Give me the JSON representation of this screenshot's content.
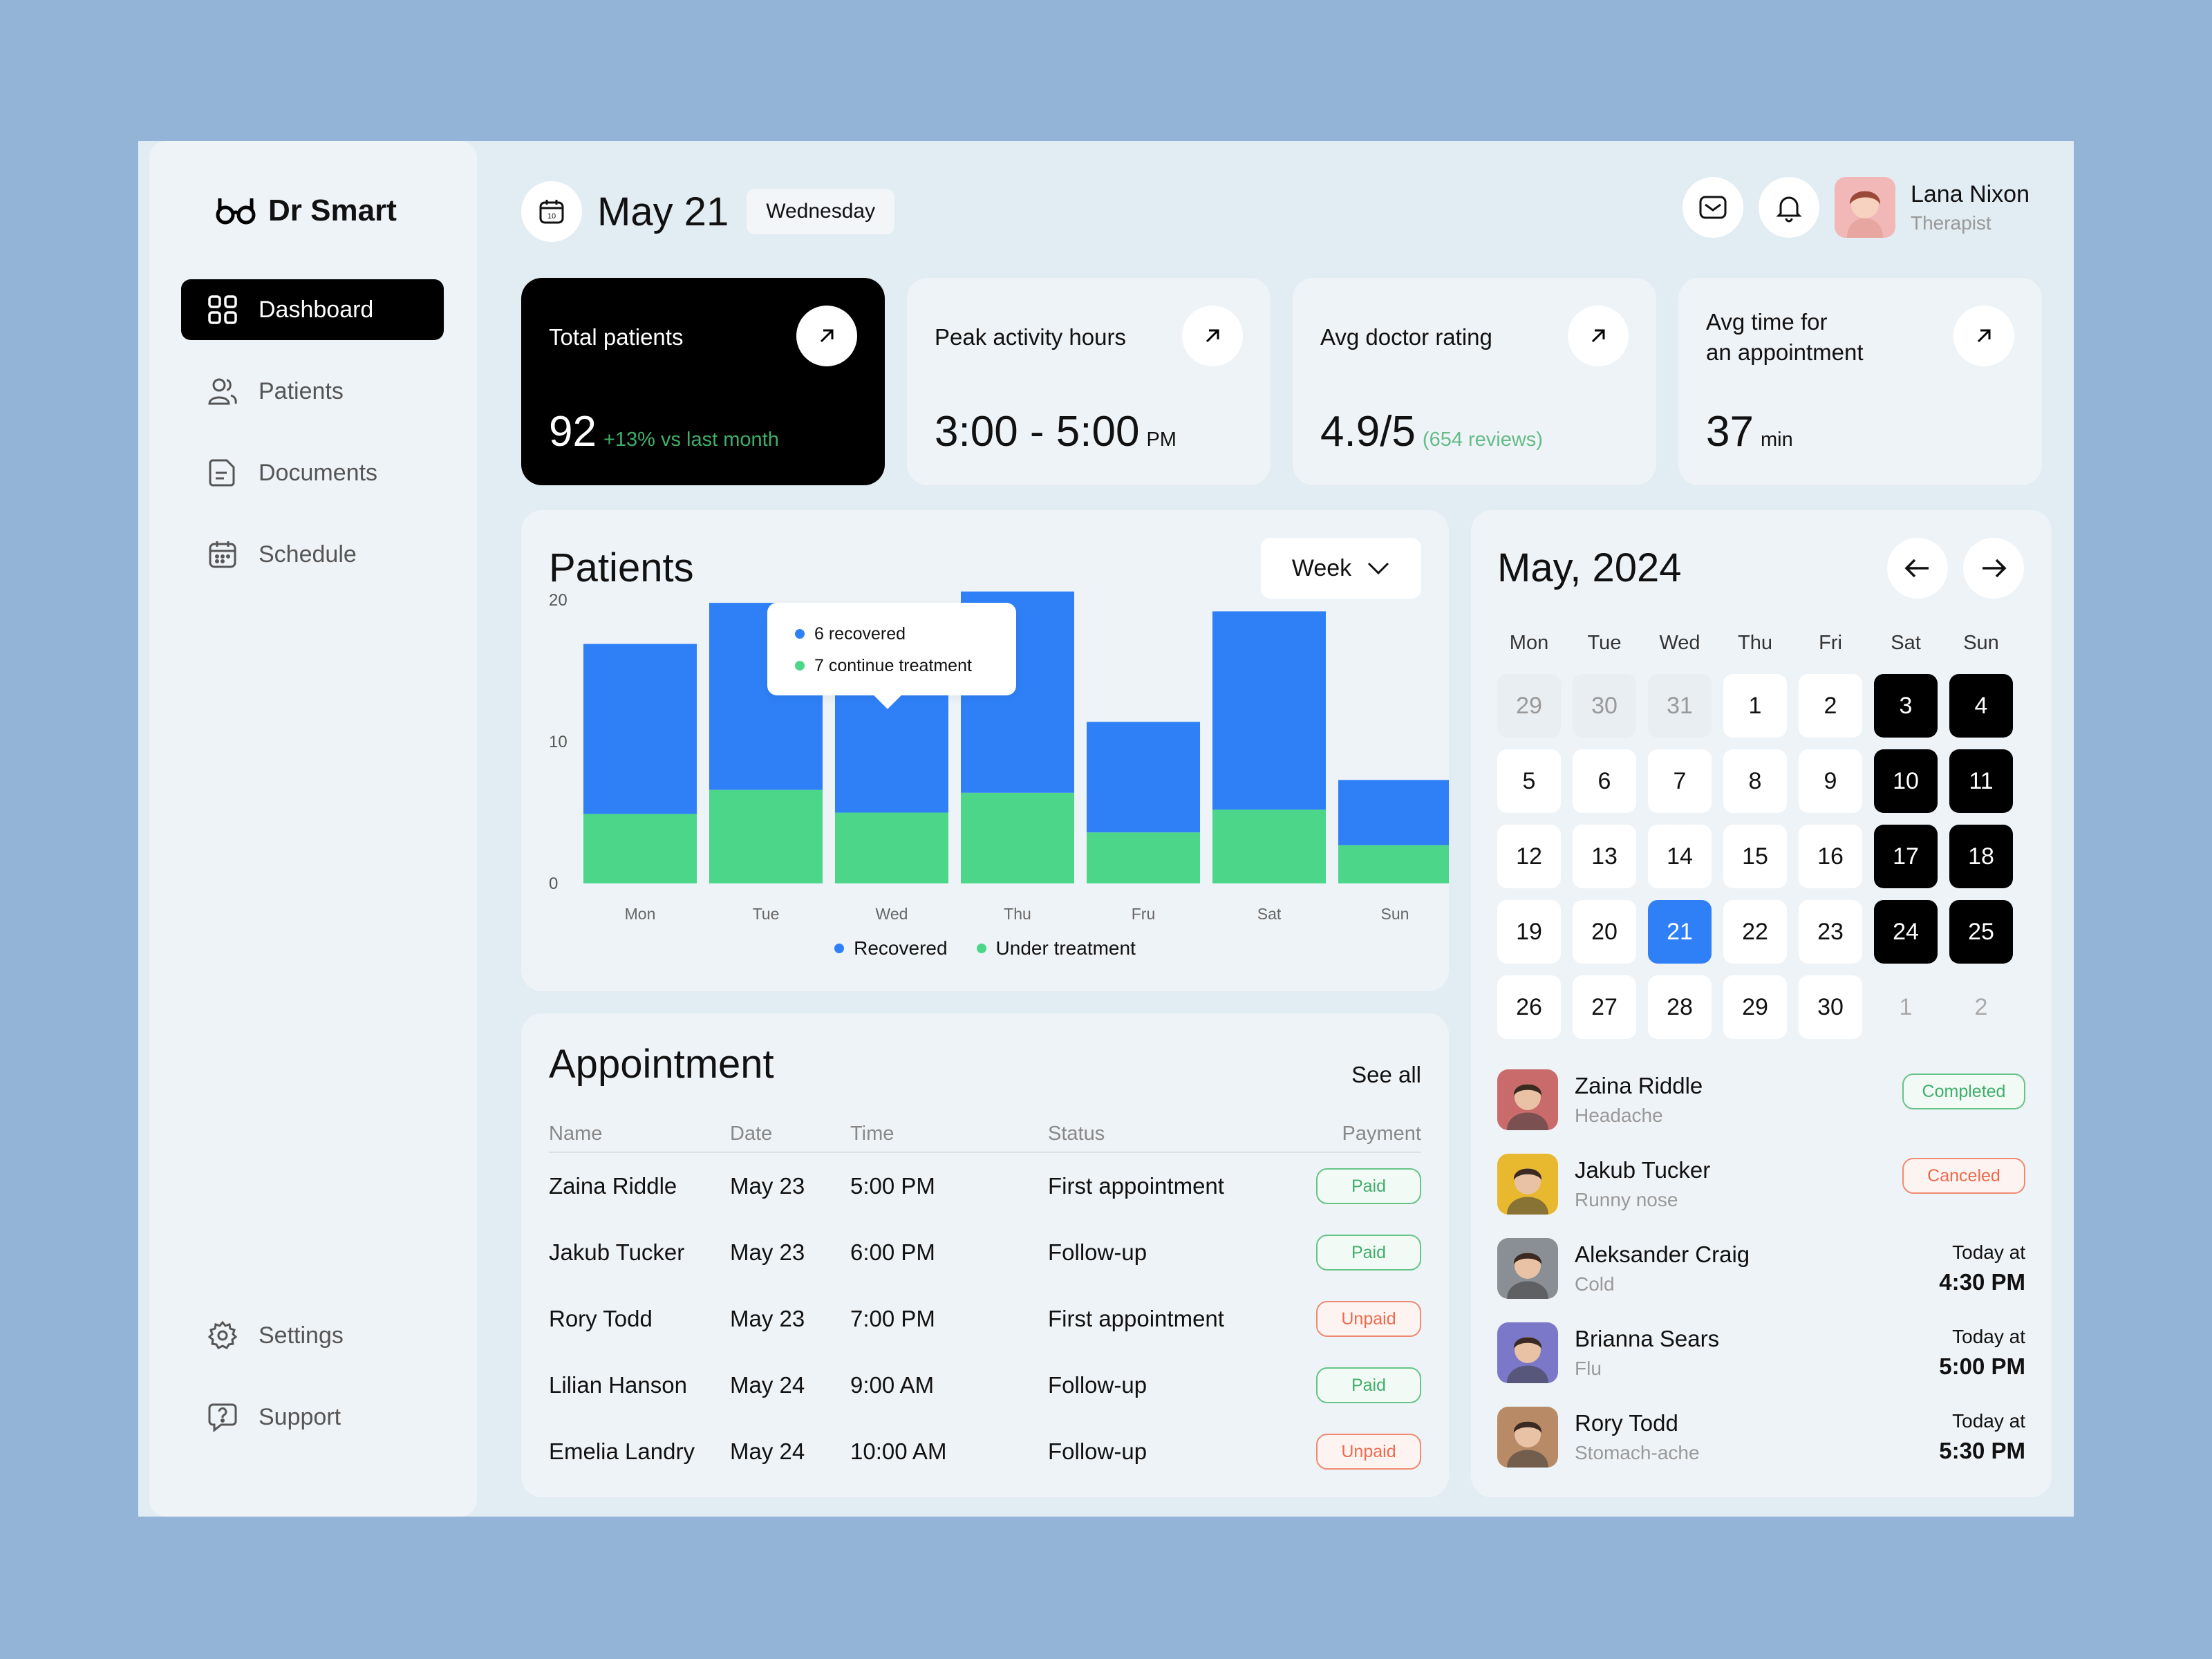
{
  "brand": {
    "name": "Dr Smart",
    "icon": "glasses-icon"
  },
  "sidebar": {
    "items": [
      {
        "label": "Dashboard",
        "icon": "grid-icon",
        "active": true
      },
      {
        "label": "Patients",
        "icon": "users-icon"
      },
      {
        "label": "Documents",
        "icon": "document-icon"
      },
      {
        "label": "Schedule",
        "icon": "calendar-icon"
      }
    ],
    "bottom": [
      {
        "label": "Settings",
        "icon": "gear-icon"
      },
      {
        "label": "Support",
        "icon": "chat-question-icon"
      }
    ]
  },
  "header": {
    "date": "May 21",
    "weekday": "Wednesday",
    "user": {
      "name": "Lana Nixon",
      "role": "Therapist"
    }
  },
  "stats": [
    {
      "title": "Total patients",
      "value": "92",
      "suffix": "+13% vs last month"
    },
    {
      "title": "Peak activity hours",
      "value": "3:00 - 5:00",
      "suffix": "PM"
    },
    {
      "title": "Avg doctor rating",
      "value": "4.9/5",
      "suffix": "(654 reviews)"
    },
    {
      "title_line1": "Avg time for",
      "title_line2": "an appointment",
      "value": "37",
      "suffix": "min"
    }
  ],
  "patients_panel": {
    "title": "Patients",
    "range_label": "Week",
    "tooltip": {
      "recovered": "6 recovered",
      "treatment": "7 continue treatment"
    }
  },
  "chart_data": {
    "type": "bar",
    "stacked": true,
    "categories": [
      "Mon",
      "Tue",
      "Wed",
      "Thu",
      "Fru",
      "Sat",
      "Sun"
    ],
    "series": [
      {
        "name": "Under treatment",
        "color": "#4cd68a",
        "values": [
          4.9,
          6.6,
          5.0,
          6.4,
          3.6,
          5.2,
          2.7
        ]
      },
      {
        "name": "Recovered",
        "color": "#2f80f7",
        "values": [
          12.0,
          13.2,
          9.6,
          14.2,
          7.8,
          14.0,
          4.6
        ]
      }
    ],
    "yticks": [
      0,
      10,
      20
    ],
    "ylim": [
      0,
      20
    ]
  },
  "appointment": {
    "title": "Appointment",
    "see_all": "See all",
    "columns": [
      "Name",
      "Date",
      "Time",
      "Status",
      "Payment"
    ],
    "rows": [
      {
        "name": "Zaina Riddle",
        "date": "May 23",
        "time": "5:00 PM",
        "status": "First appointment",
        "payment": "Paid"
      },
      {
        "name": "Jakub Tucker",
        "date": "May 23",
        "time": "6:00 PM",
        "status": "Follow-up",
        "payment": "Paid"
      },
      {
        "name": "Rory Todd",
        "date": "May 23",
        "time": "7:00 PM",
        "status": "First appointment",
        "payment": "Unpaid"
      },
      {
        "name": "Lilian Hanson",
        "date": "May 24",
        "time": "9:00 AM",
        "status": "Follow-up",
        "payment": "Paid"
      },
      {
        "name": "Emelia Landry",
        "date": "May 24",
        "time": "10:00 AM",
        "status": "Follow-up",
        "payment": "Unpaid"
      }
    ]
  },
  "calendar": {
    "title": "May, 2024",
    "weekdays": [
      "Mon",
      "Tue",
      "Wed",
      "Thu",
      "Fri",
      "Sat",
      "Sun"
    ],
    "days": [
      {
        "d": "29",
        "t": "prev"
      },
      {
        "d": "30",
        "t": "prev"
      },
      {
        "d": "31",
        "t": "prev"
      },
      {
        "d": "1"
      },
      {
        "d": "2"
      },
      {
        "d": "3",
        "t": "weekend"
      },
      {
        "d": "4",
        "t": "weekend"
      },
      {
        "d": "5"
      },
      {
        "d": "6"
      },
      {
        "d": "7"
      },
      {
        "d": "8"
      },
      {
        "d": "9"
      },
      {
        "d": "10",
        "t": "weekend"
      },
      {
        "d": "11",
        "t": "weekend"
      },
      {
        "d": "12"
      },
      {
        "d": "13"
      },
      {
        "d": "14"
      },
      {
        "d": "15"
      },
      {
        "d": "16"
      },
      {
        "d": "17",
        "t": "weekend"
      },
      {
        "d": "18",
        "t": "weekend"
      },
      {
        "d": "19"
      },
      {
        "d": "20"
      },
      {
        "d": "21",
        "t": "today"
      },
      {
        "d": "22"
      },
      {
        "d": "23"
      },
      {
        "d": "24",
        "t": "weekend"
      },
      {
        "d": "25",
        "t": "weekend"
      },
      {
        "d": "26"
      },
      {
        "d": "27"
      },
      {
        "d": "28"
      },
      {
        "d": "29"
      },
      {
        "d": "30"
      },
      {
        "d": "1",
        "t": "next"
      },
      {
        "d": "2",
        "t": "next"
      }
    ]
  },
  "visits": [
    {
      "name": "Zaina Riddle",
      "condition": "Headache",
      "badge": "Completed",
      "kind": "completed",
      "color": "#c96b6b"
    },
    {
      "name": "Jakub Tucker",
      "condition": "Runny nose",
      "badge": "Canceled",
      "kind": "canceled",
      "color": "#e8b92e"
    },
    {
      "name": "Aleksander Craig",
      "condition": "Cold",
      "label": "Today at",
      "time": "4:30 PM",
      "color": "#8a8f95"
    },
    {
      "name": "Brianna Sears",
      "condition": "Flu",
      "label": "Today at",
      "time": "5:00 PM",
      "color": "#7b78c9"
    },
    {
      "name": "Rory Todd",
      "condition": "Stomach-ache",
      "label": "Today at",
      "time": "5:30 PM",
      "color": "#b88a66"
    }
  ]
}
